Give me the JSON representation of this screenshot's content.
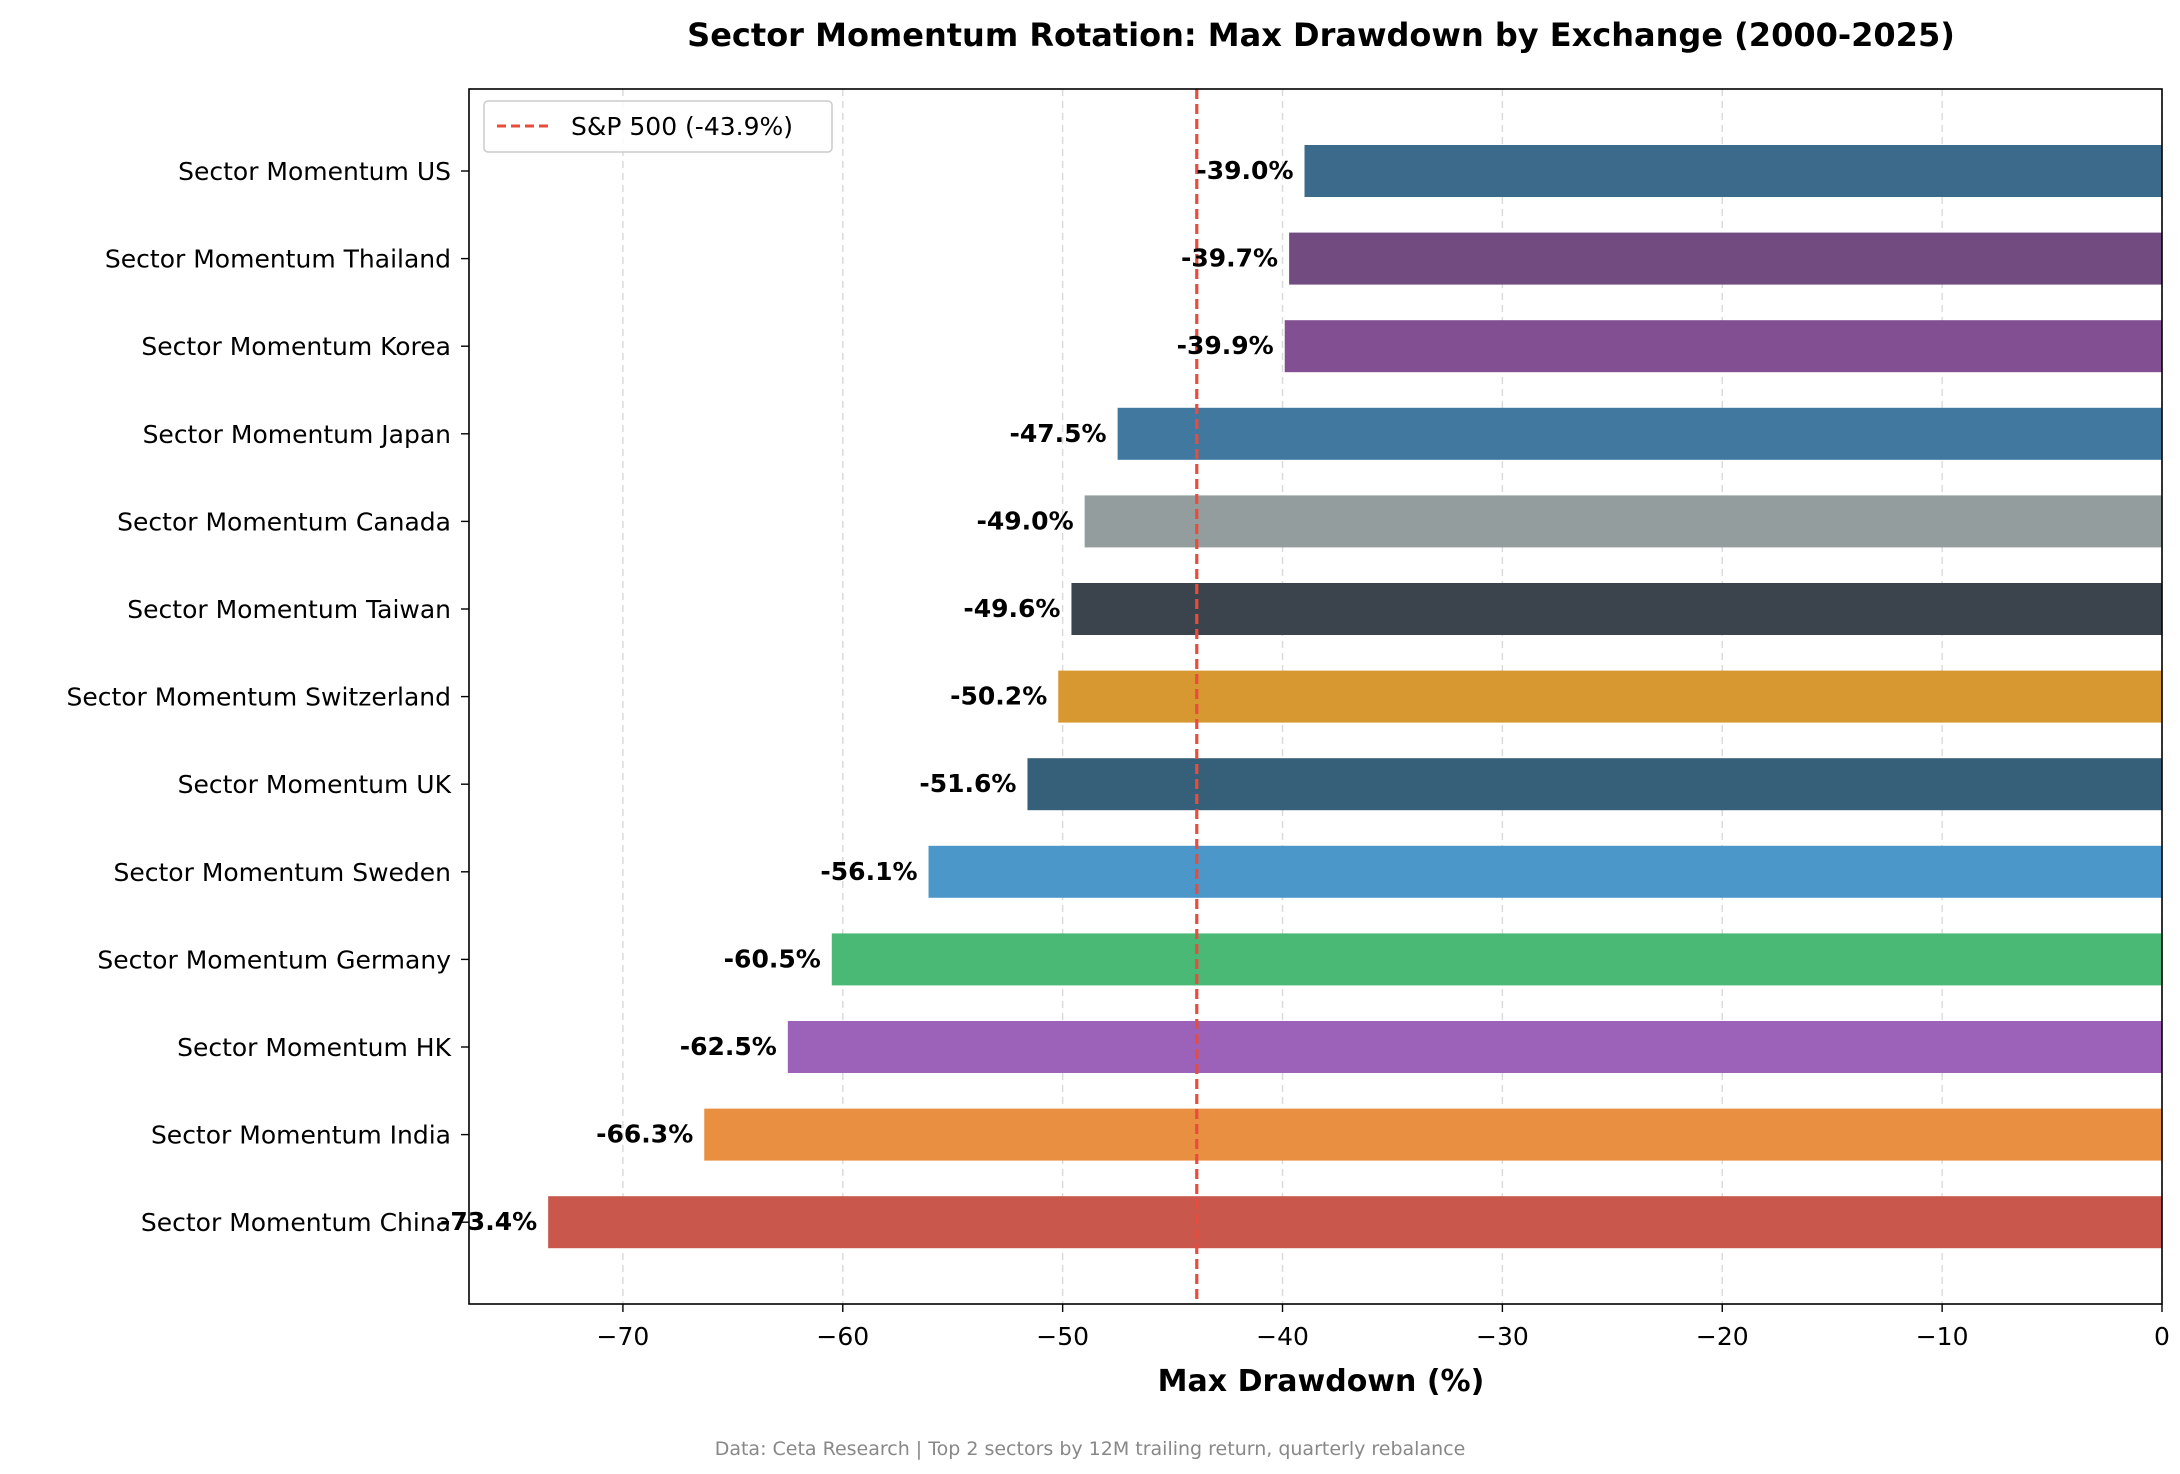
{
  "chart_data": {
    "type": "bar",
    "orientation": "horizontal",
    "title": "Sector Momentum Rotation: Max Drawdown by Exchange (2000-2025)",
    "xlabel": "Max Drawdown (%)",
    "ylabel": "",
    "xlim": [
      -77,
      0
    ],
    "xticks": [
      -70,
      -60,
      -50,
      -40,
      -30,
      -20,
      -10,
      0
    ],
    "xtick_labels": [
      "−70",
      "−60",
      "−50",
      "−40",
      "−30",
      "−20",
      "−10",
      "0"
    ],
    "grid": "x-dashed",
    "categories": [
      "Sector Momentum US",
      "Sector Momentum Thailand",
      "Sector Momentum Korea",
      "Sector Momentum Japan",
      "Sector Momentum Canada",
      "Sector Momentum Taiwan",
      "Sector Momentum Switzerland",
      "Sector Momentum UK",
      "Sector Momentum Sweden",
      "Sector Momentum Germany",
      "Sector Momentum HK",
      "Sector Momentum India",
      "Sector Momentum China"
    ],
    "values": [
      -39.0,
      -39.7,
      -39.9,
      -47.5,
      -49.0,
      -49.6,
      -50.2,
      -51.6,
      -56.1,
      -60.5,
      -62.5,
      -66.3,
      -73.4
    ],
    "value_labels": [
      "-39.0%",
      "-39.7%",
      "-39.9%",
      "-47.5%",
      "-49.0%",
      "-49.6%",
      "-50.2%",
      "-51.6%",
      "-56.1%",
      "-60.5%",
      "-62.5%",
      "-66.3%",
      "-73.4%"
    ],
    "colors": [
      "#3b6a8a",
      "#724b80",
      "#824f93",
      "#40789f",
      "#939d9d",
      "#3b444d",
      "#d89831",
      "#365f7a",
      "#4c97c9",
      "#49b975",
      "#9c61b9",
      "#e98f41",
      "#c9574b"
    ],
    "reference_line": {
      "value": -43.9,
      "label": "S&P 500 (-43.9%)",
      "color": "#e74c3c",
      "style": "dashed"
    },
    "legend": {
      "placement": "top-left"
    },
    "footnote": "Data: Ceta Research | Top 2 sectors by 12M trailing return, quarterly rebalance"
  }
}
